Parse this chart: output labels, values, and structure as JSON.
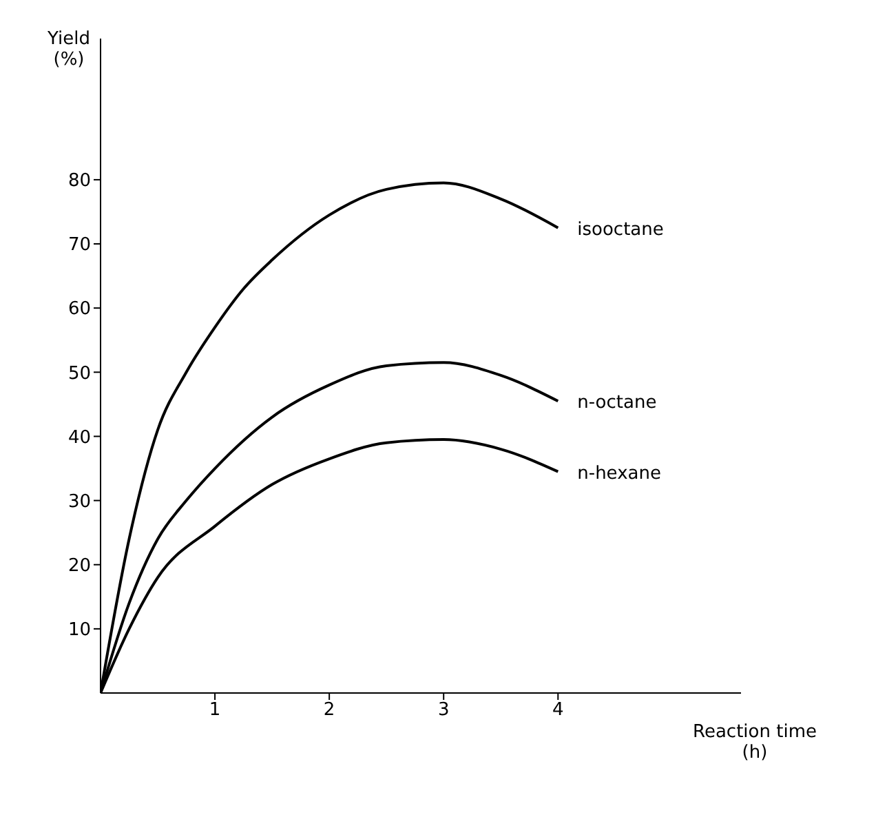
{
  "chart_data": {
    "type": "line",
    "xlabel": "Reaction time (h)",
    "ylabel": "Yield (%)",
    "xlim": [
      0,
      5.6
    ],
    "ylim": [
      0,
      102
    ],
    "xticks": [
      1,
      2,
      3,
      4
    ],
    "yticks": [
      10,
      20,
      30,
      40,
      50,
      60,
      70,
      80
    ],
    "grid": false,
    "legend": false,
    "marker": "none",
    "line_style": "solid",
    "series": [
      {
        "name": "isooctane",
        "color": "#000000",
        "x": [
          0,
          0.25,
          0.5,
          0.75,
          1,
          1.25,
          1.5,
          2,
          2.5,
          3,
          3.5,
          4
        ],
        "values": [
          0,
          24,
          41,
          50,
          57,
          63,
          67.5,
          74.5,
          78.5,
          79.5,
          77,
          72.5
        ]
      },
      {
        "name": "n-octane",
        "color": "#000000",
        "x": [
          0,
          0.25,
          0.5,
          0.75,
          1,
          1.5,
          2,
          2.5,
          3,
          3.5,
          4
        ],
        "values": [
          0,
          14,
          24,
          30,
          35,
          43,
          48,
          51,
          51.5,
          49.5,
          45.5
        ]
      },
      {
        "name": "n-hexane",
        "color": "#000000",
        "x": [
          0,
          0.25,
          0.5,
          1,
          1.5,
          2,
          2.5,
          3,
          3.5,
          4
        ],
        "values": [
          0,
          10,
          18,
          26,
          32.5,
          36.5,
          39,
          39.5,
          38,
          34.5
        ]
      }
    ]
  }
}
